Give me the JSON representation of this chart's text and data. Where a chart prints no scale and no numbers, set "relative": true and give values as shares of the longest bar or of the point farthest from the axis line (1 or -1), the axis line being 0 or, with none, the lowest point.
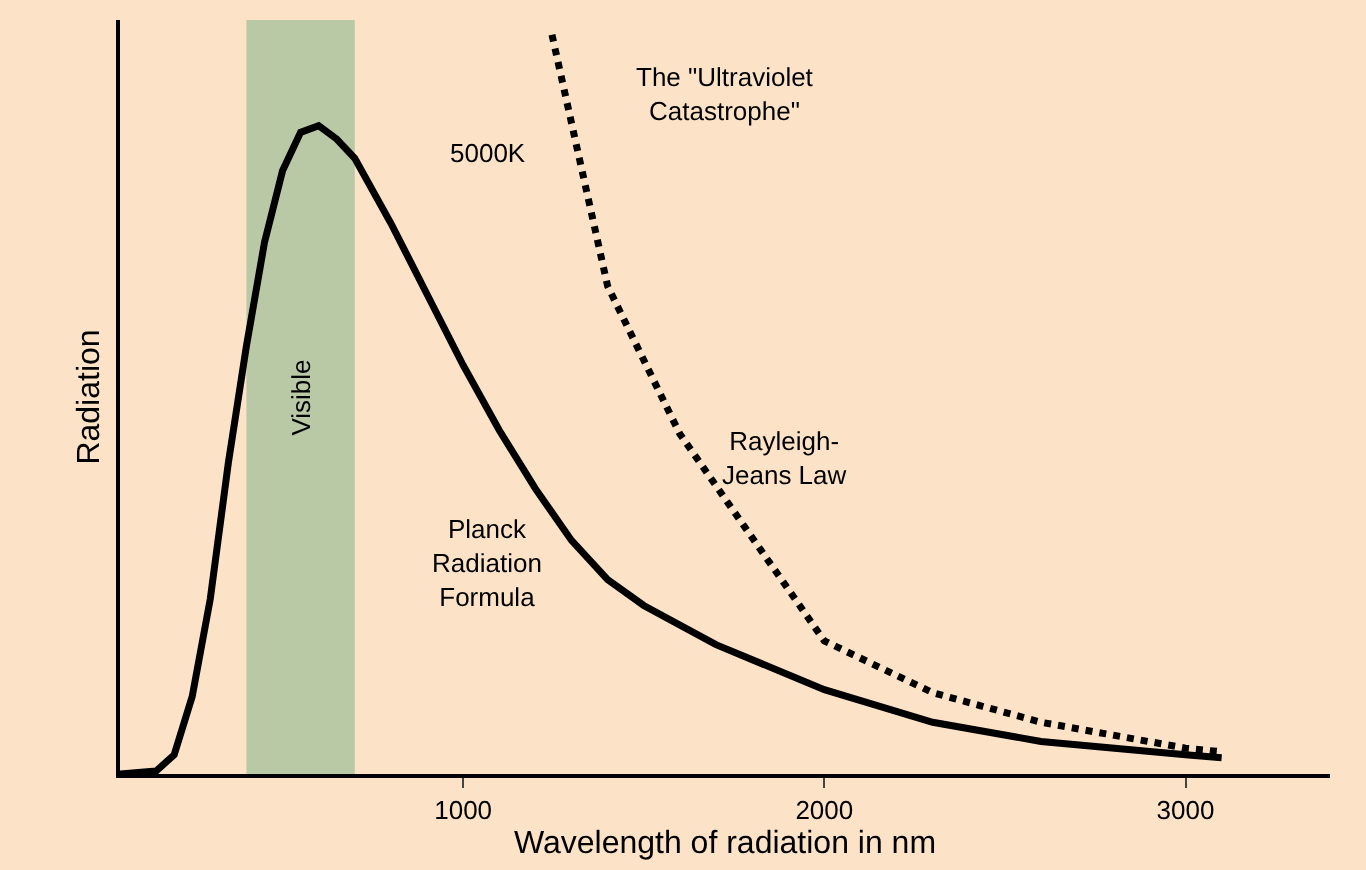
{
  "chart_data": {
    "type": "line",
    "relative": true,
    "xlabel": "Wavelength of radiation in nm",
    "ylabel": "Radiation",
    "xlim": [
      50,
      3400
    ],
    "xticks": [
      1000,
      2000,
      3000
    ],
    "grid": false,
    "marker": "none",
    "series": [
      {
        "color": "#000000",
        "line_style": "solid",
        "x": [
          50,
          150,
          200,
          250,
          300,
          350,
          400,
          450,
          500,
          550,
          600,
          650,
          700,
          800,
          900,
          1000,
          1100,
          1200,
          1300,
          1400,
          1500,
          1700,
          2000,
          2300,
          2600,
          3000,
          3100
        ],
        "values": [
          0,
          0.004,
          0.026,
          0.105,
          0.237,
          0.421,
          0.579,
          0.719,
          0.816,
          0.868,
          0.877,
          0.859,
          0.833,
          0.745,
          0.649,
          0.553,
          0.465,
          0.386,
          0.316,
          0.263,
          0.228,
          0.175,
          0.114,
          0.07,
          0.044,
          0.026,
          0.022
        ]
      },
      {
        "color": "#000000",
        "line_style": "dotted",
        "x": [
          1246,
          1400,
          1600,
          1800,
          2000,
          2300,
          2600,
          3000,
          3100
        ],
        "values": [
          1,
          0.66,
          0.46,
          0.32,
          0.18,
          0.11,
          0.07,
          0.035,
          0.03
        ]
      }
    ],
    "bands": [
      {
        "axis": "x",
        "from": 400,
        "to": 700,
        "label": "Visible",
        "color": "#b9c9a6"
      }
    ],
    "annotations": [
      "The \"Ultraviolet\nCatastrophe\"",
      "5000K",
      "Rayleigh-\nJeans Law",
      "Planck\nRadiation\nFormula"
    ]
  }
}
